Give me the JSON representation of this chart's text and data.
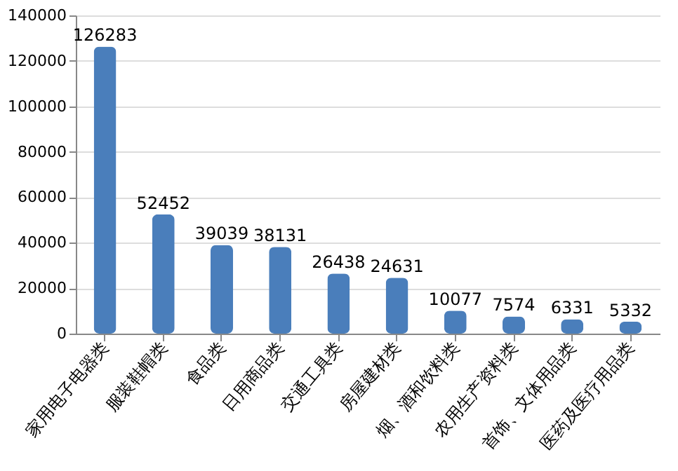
{
  "chart_data": {
    "type": "bar",
    "categories": [
      "家用电子电器类",
      "服装鞋帽类",
      "食品类",
      "日用商品类",
      "交通工具类",
      "房屋建材类",
      "烟、酒和饮料类",
      "农用生产资料类",
      "首饰、文体用品类",
      "医药及医疗用品类"
    ],
    "values": [
      126283,
      52452,
      39039,
      38131,
      26438,
      24631,
      10077,
      7574,
      6331,
      5332
    ],
    "color": "#4a7ebb",
    "ylim": [
      0,
      140000
    ],
    "yticks": [
      0,
      20000,
      40000,
      60000,
      80000,
      100000,
      120000,
      140000
    ],
    "grid": "y",
    "data_labels": true
  }
}
